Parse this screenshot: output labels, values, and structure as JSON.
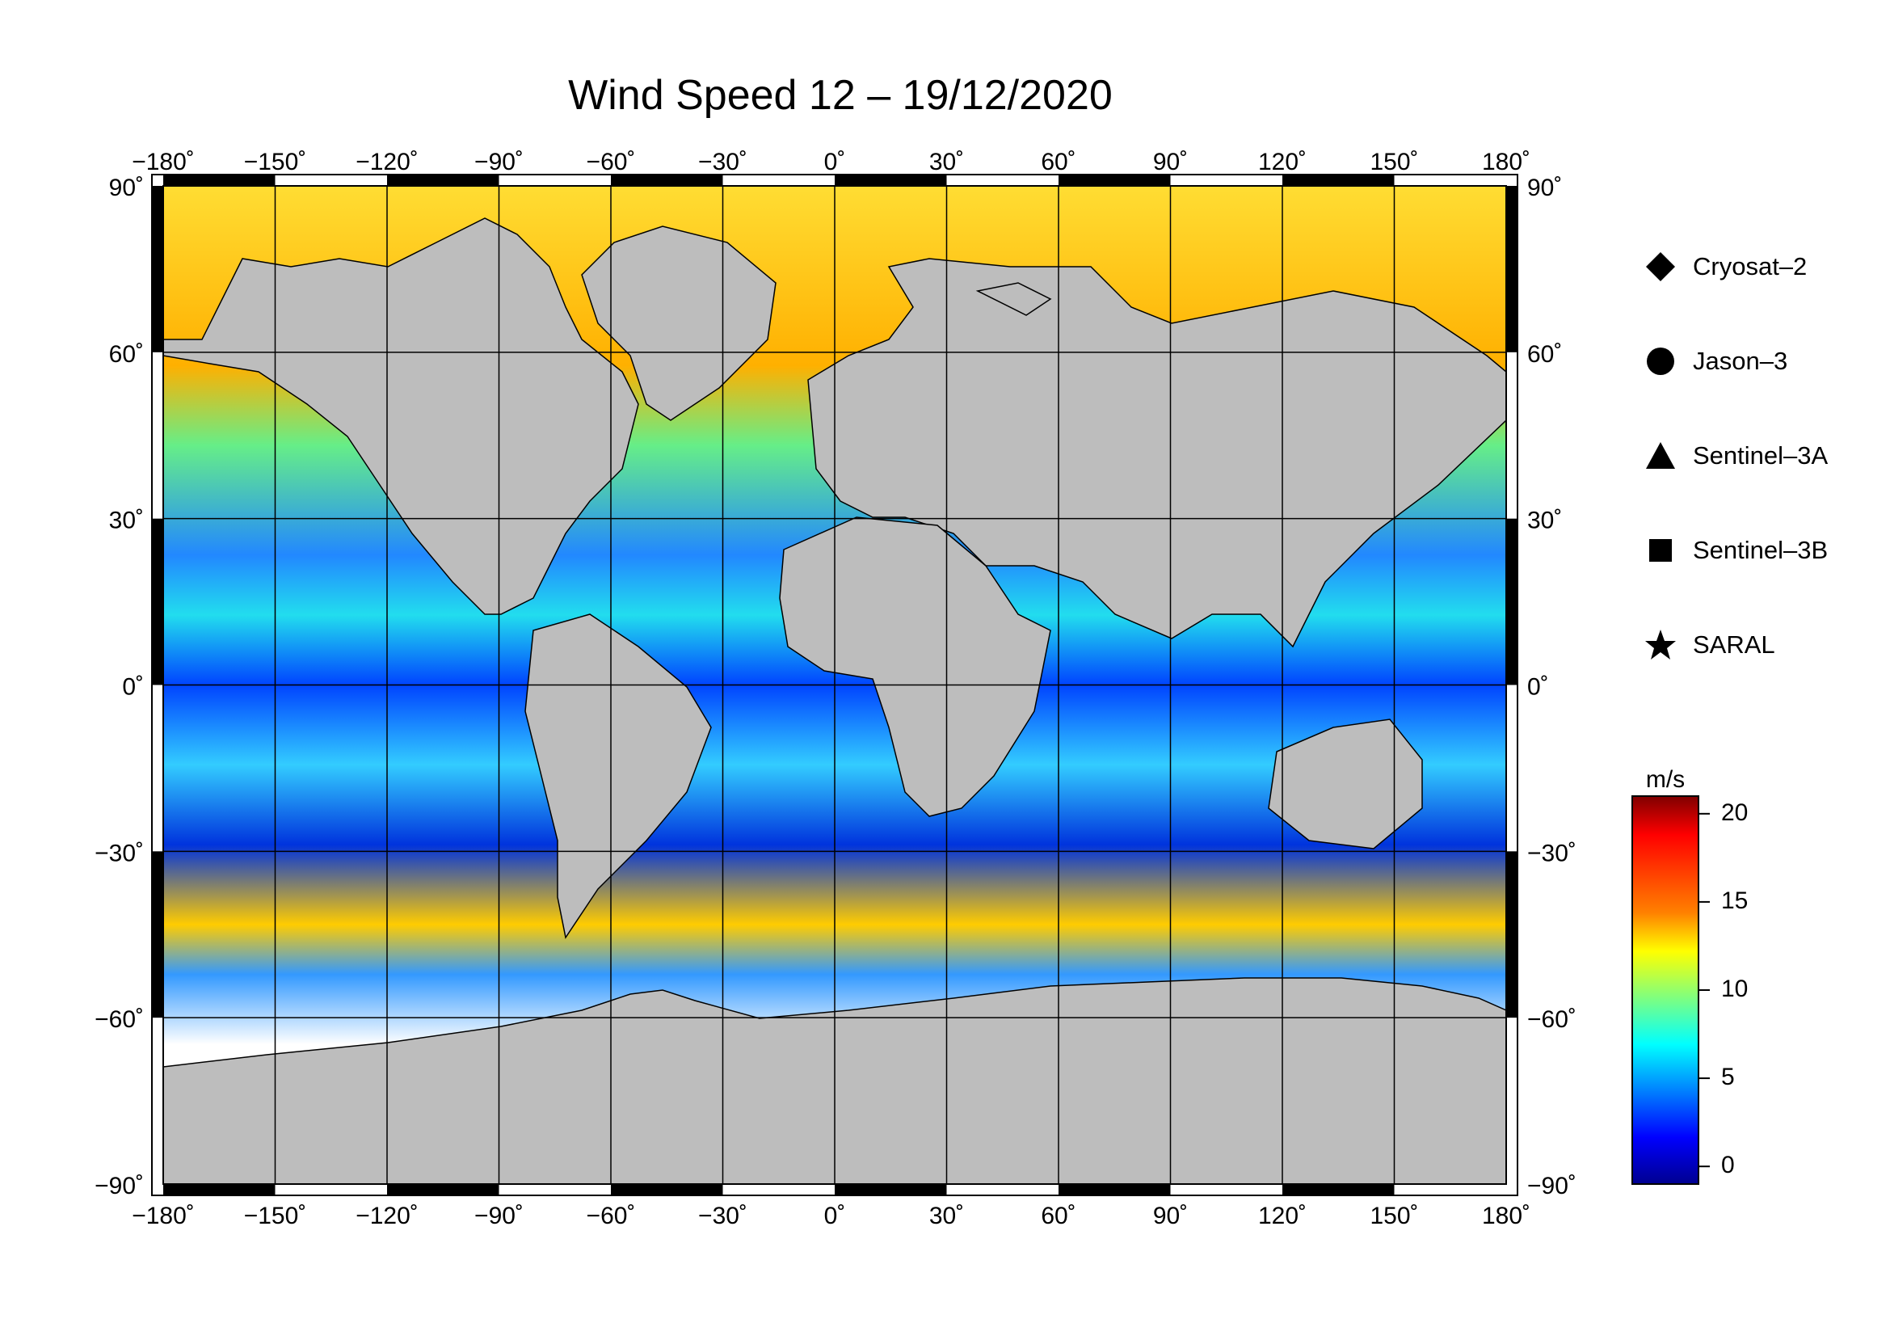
{
  "title": "Wind Speed 12 – 19/12/2020",
  "lon_ticks": [
    "−180˚",
    "−150˚",
    "−120˚",
    "−90˚",
    "−60˚",
    "−30˚",
    "0˚",
    "30˚",
    "60˚",
    "90˚",
    "120˚",
    "150˚",
    "180˚"
  ],
  "lat_ticks": [
    "90˚",
    "60˚",
    "30˚",
    "0˚",
    "−30˚",
    "−60˚",
    "−90˚"
  ],
  "lon_values": [
    -180,
    -150,
    -120,
    -90,
    -60,
    -30,
    0,
    30,
    60,
    90,
    120,
    150,
    180
  ],
  "lat_values": [
    90,
    60,
    30,
    0,
    -30,
    -60,
    -90
  ],
  "legend": [
    {
      "symbol": "diamond",
      "label": "Cryosat–2"
    },
    {
      "symbol": "circle",
      "label": "Jason–3"
    },
    {
      "symbol": "triangle",
      "label": "Sentinel–3A"
    },
    {
      "symbol": "square",
      "label": "Sentinel–3B"
    },
    {
      "symbol": "star",
      "label": "SARAL"
    }
  ],
  "colorbar": {
    "unit": "m/s",
    "ticks": [
      "20",
      "15",
      "10",
      "5",
      "0"
    ],
    "range": [
      -1,
      21
    ],
    "colors": [
      "#7f0000",
      "#ff0000",
      "#ff7f00",
      "#ffff00",
      "#7fff7f",
      "#00ffff",
      "#007fff",
      "#0000ff",
      "#00008f"
    ]
  },
  "map_colors": {
    "land": "#bdbdbd",
    "ice": "#ffffff",
    "grid": "#000000"
  }
}
